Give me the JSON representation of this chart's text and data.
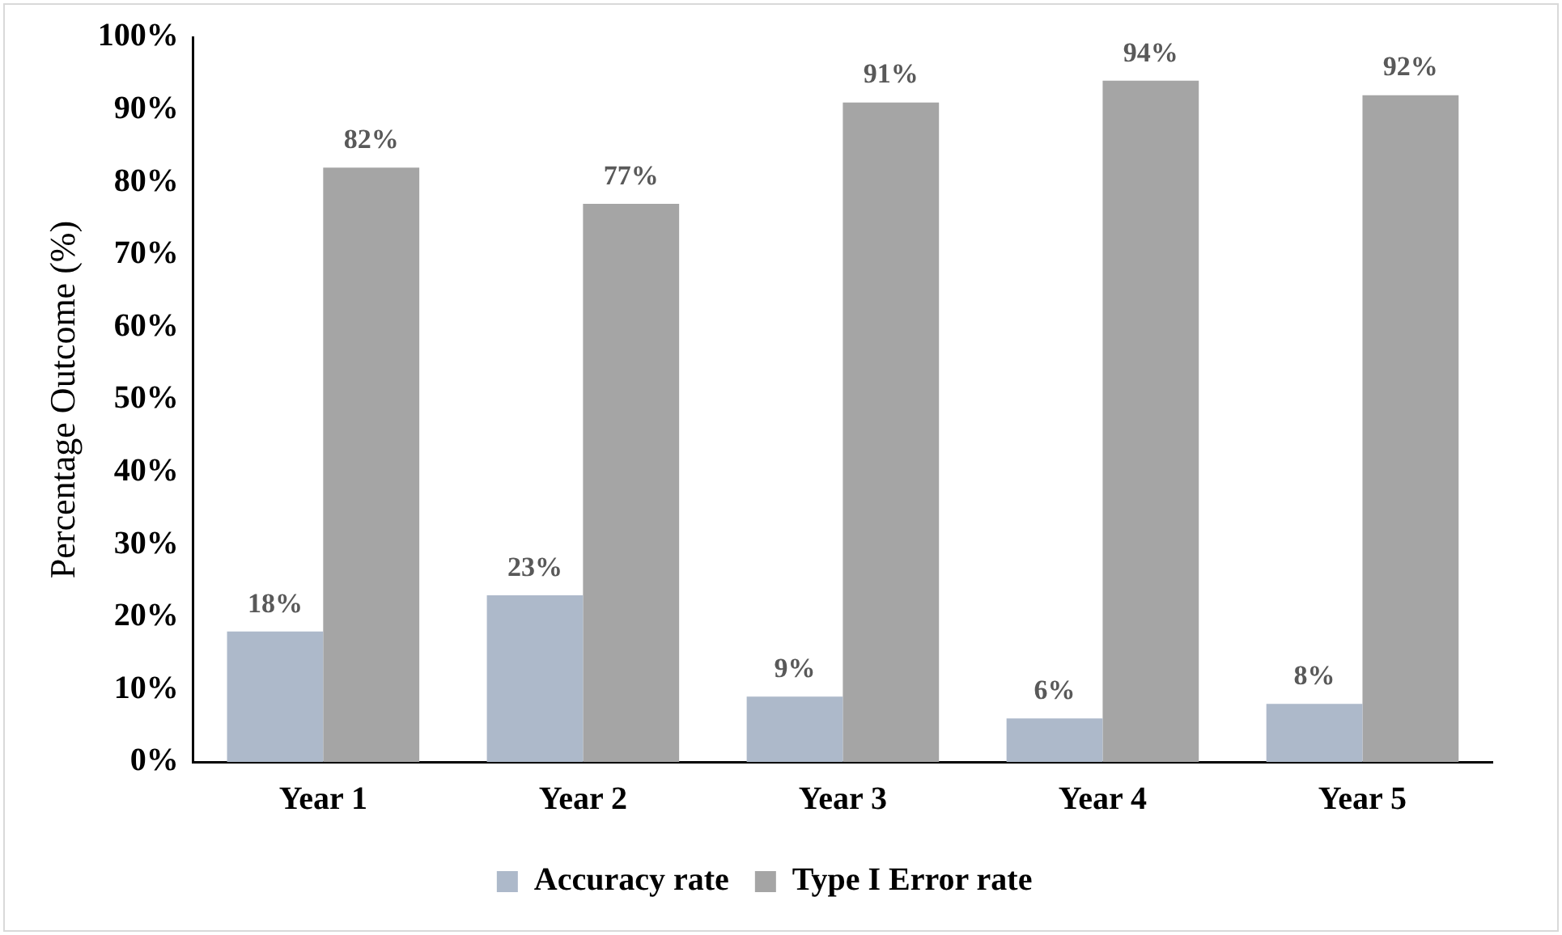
{
  "chart_data": {
    "type": "bar",
    "ylabel": "Percentage Outcome (%)",
    "categories": [
      "Year 1",
      "Year 2",
      "Year 3",
      "Year 4",
      "Year 5"
    ],
    "series": [
      {
        "name": "Accuracy rate",
        "color": "#adb9ca",
        "values": [
          18,
          23,
          9,
          6,
          8
        ],
        "value_labels": [
          "18%",
          "23%",
          "9%",
          "6%",
          "8%"
        ]
      },
      {
        "name": "Type I Error rate",
        "color": "#a5a5a5",
        "values": [
          82,
          77,
          91,
          94,
          92
        ],
        "value_labels": [
          "82%",
          "77%",
          "91%",
          "94%",
          "92%"
        ]
      }
    ],
    "ylim": [
      0,
      100
    ],
    "yticks": [
      {
        "value": 0,
        "label": "0%"
      },
      {
        "value": 10,
        "label": "10%"
      },
      {
        "value": 20,
        "label": "20%"
      },
      {
        "value": 30,
        "label": "30%"
      },
      {
        "value": 40,
        "label": "40%"
      },
      {
        "value": 50,
        "label": "50%"
      },
      {
        "value": 60,
        "label": "60%"
      },
      {
        "value": 70,
        "label": "70%"
      },
      {
        "value": 80,
        "label": "80%"
      },
      {
        "value": 90,
        "label": "90%"
      },
      {
        "value": 100,
        "label": "100%"
      }
    ],
    "grid": false,
    "legend": "bottom"
  }
}
